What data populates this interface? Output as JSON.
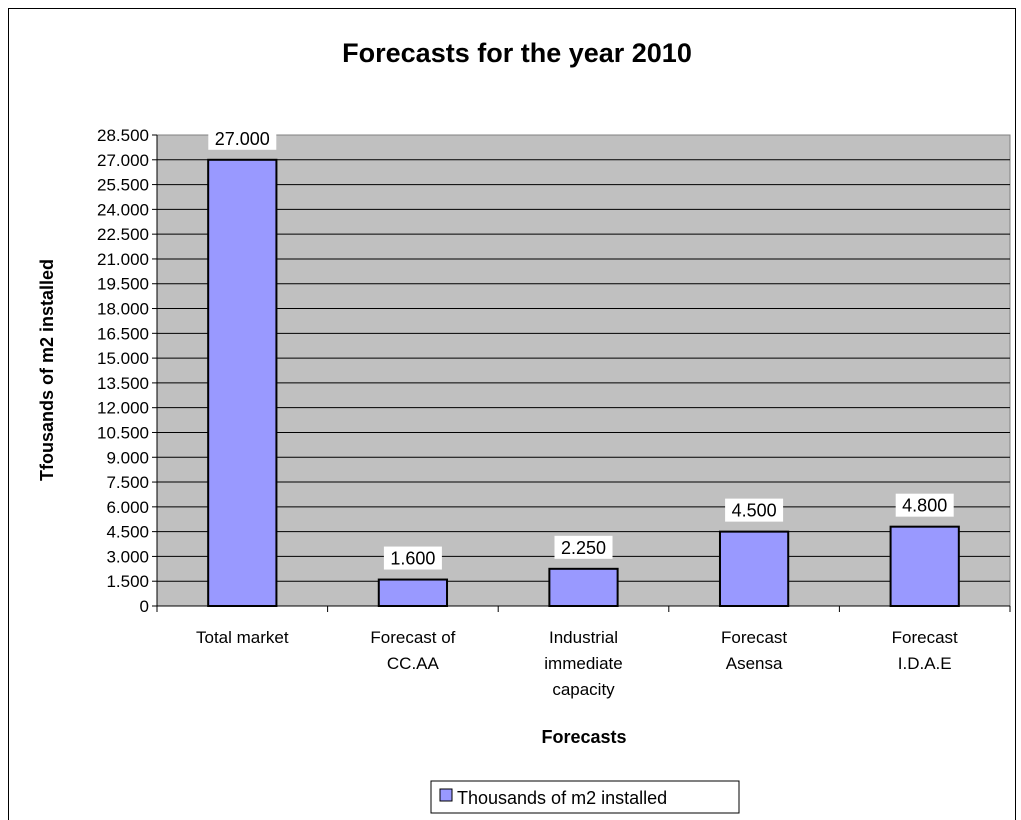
{
  "chart_data": {
    "type": "bar",
    "title": "Forecasts for the year 2010",
    "xlabel": "Forecasts",
    "ylabel": "Tfousands of m2 installed",
    "categories": [
      [
        "Total market"
      ],
      [
        "Forecast of",
        "CC.AA"
      ],
      [
        "Industrial",
        "immediate",
        "capacity"
      ],
      [
        "Forecast",
        "Asensa"
      ],
      [
        "Forecast",
        "I.D.A.E"
      ]
    ],
    "series": [
      {
        "name": "Thousands of m2 installed",
        "values": [
          27000,
          1600,
          2250,
          4500,
          4800
        ],
        "value_labels": [
          "27.000",
          "1.600",
          "2.250",
          "4.500",
          "4.800"
        ],
        "color": "#9999ff"
      }
    ],
    "ylim": [
      0,
      28500
    ],
    "yticks": [
      0,
      1500,
      3000,
      4500,
      6000,
      7500,
      9000,
      10500,
      12000,
      13500,
      15000,
      16500,
      18000,
      19500,
      21000,
      22500,
      24000,
      25500,
      27000,
      28500
    ],
    "ytick_labels": [
      "0",
      "1.500",
      "3.000",
      "4.500",
      "6.000",
      "7.500",
      "9.000",
      "10.500",
      "12.000",
      "13.500",
      "15.000",
      "16.500",
      "18.000",
      "19.500",
      "21.000",
      "22.500",
      "24.000",
      "25.500",
      "27.000",
      "28.500"
    ],
    "grid": true,
    "legend_position": "bottom",
    "plot_background": "#c0c0c0"
  }
}
